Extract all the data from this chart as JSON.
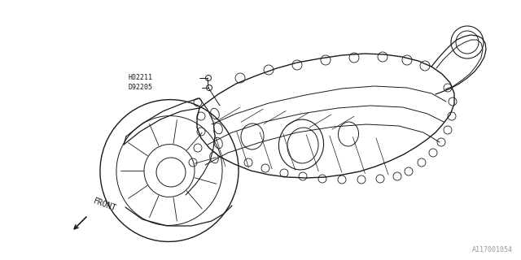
{
  "bg_color": "#ffffff",
  "line_color": "#1a1a1a",
  "label_color": "#1a1a1a",
  "fig_w": 6.4,
  "fig_h": 3.2,
  "dpi": 100,
  "label1": "H02211",
  "label2": "D92205",
  "diagram_id": "A117001054",
  "front_text": "FRONT"
}
